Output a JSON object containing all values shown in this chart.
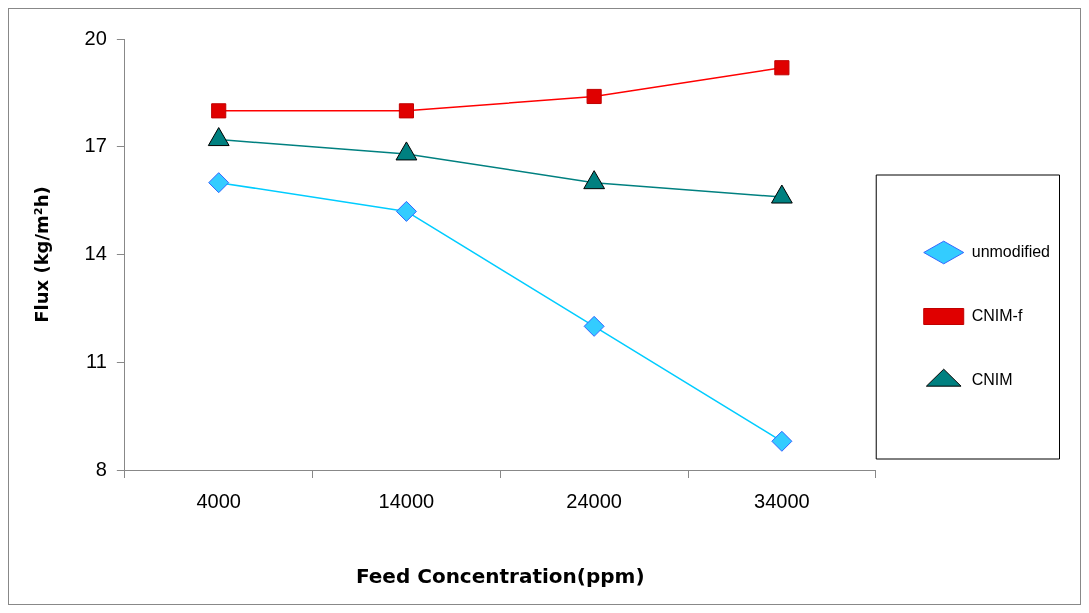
{
  "chart_data": {
    "type": "line",
    "xlabel": "Feed Concentration(ppm)",
    "ylabel": "Flux (kg/m²h)",
    "categories": [
      "4000",
      "14000",
      "24000",
      "34000"
    ],
    "series": [
      {
        "name": "unmodified",
        "color": "#00ccff",
        "marker": "diamond",
        "values": [
          16.0,
          15.2,
          12.0,
          8.8
        ]
      },
      {
        "name": "CNIM-f",
        "color": "#ff0000",
        "marker": "square",
        "values": [
          18.0,
          18.0,
          18.4,
          19.2
        ]
      },
      {
        "name": "CNIM",
        "color": "#008080",
        "marker": "triangle",
        "values": [
          17.2,
          16.8,
          16.0,
          15.6
        ]
      }
    ],
    "ylim": [
      8,
      20
    ],
    "yticks": [
      8,
      11,
      14,
      17,
      20
    ],
    "grid": false,
    "legend": "right",
    "line_style": "solid"
  }
}
